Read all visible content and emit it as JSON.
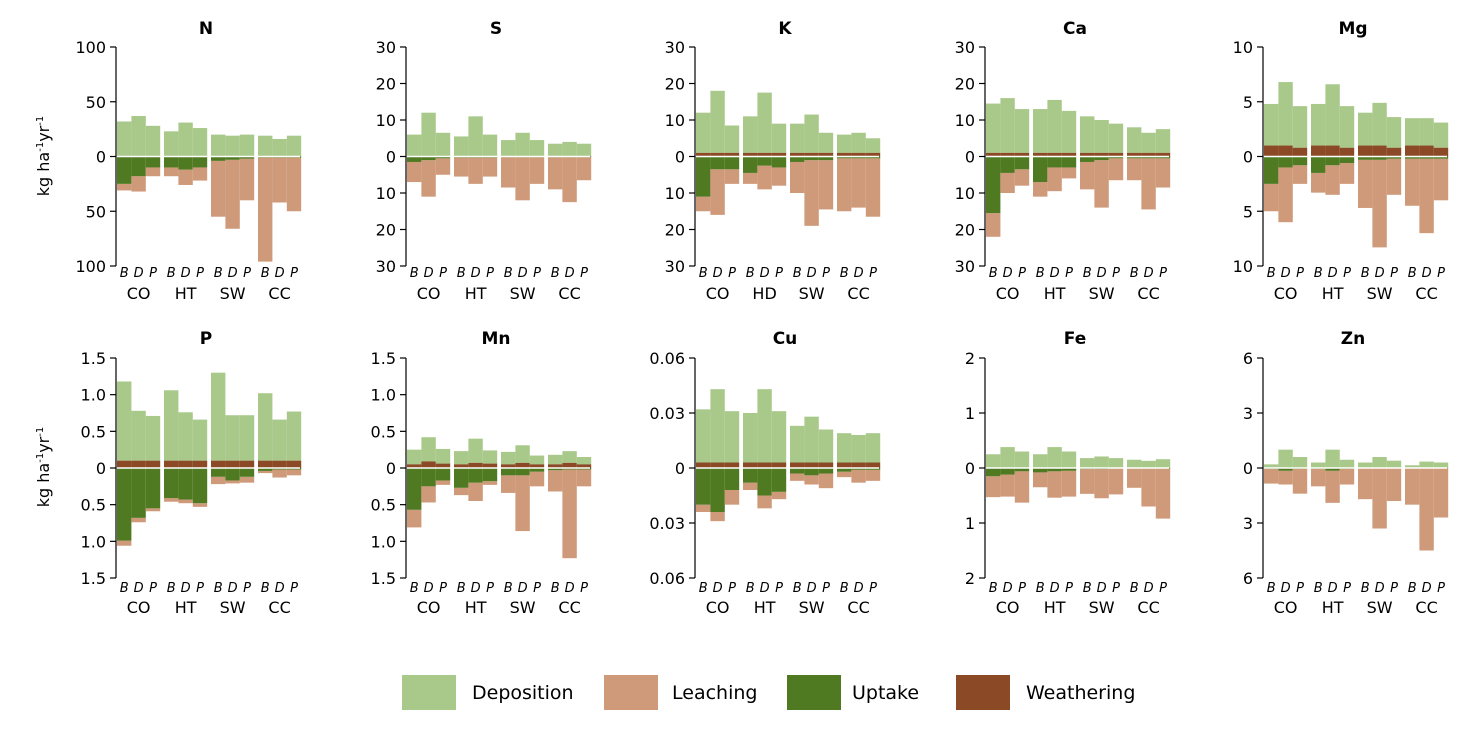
{
  "ylabel": {
    "base": "kg ha",
    "sup1": "-1",
    "mid": "yr",
    "sup2": "-1"
  },
  "colors": {
    "deposition": "#a9c98b",
    "leaching": "#cf9a7a",
    "uptake": "#4f7a22",
    "weathering": "#8b4a25"
  },
  "legend": [
    {
      "key": "deposition",
      "label": "Deposition"
    },
    {
      "key": "leaching",
      "label": "Leaching"
    },
    {
      "key": "uptake",
      "label": "Uptake"
    },
    {
      "key": "weathering",
      "label": "Weathering"
    }
  ],
  "bar_letters": [
    "B",
    "D",
    "P"
  ],
  "chart_data": [
    {
      "type": "bar",
      "title": "N",
      "ylim": [
        -100,
        100
      ],
      "ticks": [
        "100",
        "50",
        "0",
        "50",
        "100"
      ],
      "sites": [
        "CO",
        "HT",
        "SW",
        "CC"
      ],
      "deposition": [
        32,
        37,
        28,
        23,
        31,
        26,
        20,
        19,
        20,
        19,
        16,
        19
      ],
      "weathering": [
        0,
        0,
        0,
        0,
        0,
        0,
        0,
        0,
        0,
        0,
        0,
        0
      ],
      "uptake": [
        -25,
        -18,
        -10,
        -10,
        -12,
        -10,
        -4,
        -3,
        -2,
        -1,
        -1,
        -1
      ],
      "leaching": [
        -31,
        -32,
        -18,
        -18,
        -26,
        -22,
        -55,
        -66,
        -40,
        -96,
        -42,
        -50
      ]
    },
    {
      "type": "bar",
      "title": "S",
      "ylim": [
        -30,
        30
      ],
      "ticks": [
        "30",
        "20",
        "10",
        "0",
        "10",
        "20",
        "30"
      ],
      "sites": [
        "CO",
        "HT",
        "SW",
        "CC"
      ],
      "deposition": [
        6,
        12,
        6.5,
        5.5,
        11,
        6,
        4.5,
        6.5,
        4.5,
        3.5,
        4,
        3.5
      ],
      "weathering": [
        0,
        0,
        0,
        0,
        0,
        0,
        0,
        0,
        0,
        0,
        0,
        0
      ],
      "uptake": [
        -1.5,
        -1,
        -0.5,
        -0.3,
        -0.3,
        -0.3,
        -0.2,
        -0.2,
        -0.2,
        -0.2,
        -0.2,
        -0.2
      ],
      "leaching": [
        -7,
        -11,
        -5,
        -5.5,
        -7.5,
        -5.5,
        -8.5,
        -12,
        -7.5,
        -9,
        -12.5,
        -6.5
      ]
    },
    {
      "type": "bar",
      "title": "K",
      "ylim": [
        -30,
        30
      ],
      "ticks": [
        "30",
        "20",
        "10",
        "0",
        "10",
        "20",
        "30"
      ],
      "sites": [
        "CO",
        "HD",
        "SW",
        "CC"
      ],
      "deposition": [
        11,
        17,
        7.5,
        10,
        16.5,
        8,
        8,
        10.5,
        5.5,
        5,
        5.5,
        4
      ],
      "weathering": [
        1,
        1,
        1,
        1,
        1,
        1,
        1,
        1,
        1,
        1,
        1,
        1
      ],
      "uptake": [
        -11,
        -3.5,
        -3.5,
        -4.5,
        -2.5,
        -3,
        -1.5,
        -1,
        -1,
        -0.5,
        -0.5,
        -0.5
      ],
      "leaching": [
        -15,
        -16,
        -7.5,
        -7.5,
        -9,
        -8,
        -10,
        -19,
        -14.5,
        -15,
        -14,
        -16.5
      ]
    },
    {
      "type": "bar",
      "title": "Ca",
      "ylim": [
        -30,
        30
      ],
      "ticks": [
        "30",
        "20",
        "10",
        "0",
        "10",
        "20",
        "30"
      ],
      "sites": [
        "CO",
        "HT",
        "SW",
        "CC"
      ],
      "deposition": [
        13.5,
        15,
        12,
        12,
        14.5,
        11.5,
        10,
        9,
        8,
        7,
        5.5,
        6.5
      ],
      "weathering": [
        1,
        1,
        1,
        1,
        1,
        1,
        1,
        1,
        1,
        1,
        1,
        1
      ],
      "uptake": [
        -15.5,
        -4.5,
        -3.5,
        -7,
        -3,
        -3,
        -1.5,
        -1,
        -0.5,
        -0.5,
        -0.5,
        -0.5
      ],
      "leaching": [
        -22,
        -10,
        -8,
        -11,
        -9.5,
        -6,
        -9,
        -14,
        -6.5,
        -6.5,
        -14.5,
        -8.5
      ]
    },
    {
      "type": "bar",
      "title": "Mg",
      "ylim": [
        -10,
        10
      ],
      "ticks": [
        "10",
        "5",
        "0",
        "5",
        "10"
      ],
      "sites": [
        "CO",
        "HT",
        "SW",
        "CC"
      ],
      "deposition": [
        3.8,
        5.8,
        3.8,
        3.8,
        5.6,
        3.8,
        3,
        3.9,
        2.8,
        2.5,
        2.5,
        2.3
      ],
      "weathering": [
        1,
        1,
        0.8,
        1,
        1,
        0.8,
        1,
        1,
        0.8,
        1,
        1,
        0.8
      ],
      "uptake": [
        -2.5,
        -1,
        -0.8,
        -1.5,
        -0.8,
        -0.6,
        -0.3,
        -0.3,
        -0.2,
        -0.2,
        -0.2,
        -0.2
      ],
      "leaching": [
        -5,
        -6,
        -2.5,
        -3.3,
        -3.5,
        -2.5,
        -4.7,
        -8.3,
        -3.5,
        -4.5,
        -7,
        -4
      ]
    },
    {
      "type": "bar",
      "title": "P",
      "ylim": [
        -1.5,
        1.5
      ],
      "ticks": [
        "1.5",
        "1.0",
        "0.5",
        "0",
        "0.5",
        "1.0",
        "1.5"
      ],
      "sites": [
        "CO",
        "HT",
        "SW",
        "CC"
      ],
      "deposition": [
        1.08,
        0.68,
        0.61,
        0.96,
        0.66,
        0.56,
        1.2,
        0.62,
        0.62,
        0.92,
        0.56,
        0.67
      ],
      "weathering": [
        0.1,
        0.1,
        0.1,
        0.1,
        0.1,
        0.1,
        0.1,
        0.1,
        0.1,
        0.1,
        0.1,
        0.1
      ],
      "uptake": [
        -0.99,
        -0.68,
        -0.55,
        -0.41,
        -0.43,
        -0.48,
        -0.12,
        -0.17,
        -0.12,
        -0.04,
        -0.02,
        -0.02
      ],
      "leaching": [
        -1.06,
        -0.74,
        -0.59,
        -0.46,
        -0.48,
        -0.53,
        -0.22,
        -0.21,
        -0.2,
        -0.07,
        -0.13,
        -0.1
      ]
    },
    {
      "type": "bar",
      "title": "Mn",
      "ylim": [
        -1.5,
        1.5
      ],
      "ticks": [
        "1.5",
        "1.0",
        "0.5",
        "0",
        "0.5",
        "1.0",
        "1.5"
      ],
      "sites": [
        "CO",
        "HT",
        "SW",
        "CC"
      ],
      "deposition": [
        0.2,
        0.33,
        0.2,
        0.18,
        0.33,
        0.18,
        0.17,
        0.24,
        0.12,
        0.13,
        0.16,
        0.1
      ],
      "weathering": [
        0.05,
        0.09,
        0.06,
        0.05,
        0.07,
        0.06,
        0.05,
        0.07,
        0.05,
        0.05,
        0.07,
        0.05
      ],
      "uptake": [
        -0.57,
        -0.25,
        -0.17,
        -0.27,
        -0.2,
        -0.18,
        -0.1,
        -0.1,
        -0.05,
        -0.03,
        -0.02,
        -0.02
      ],
      "leaching": [
        -0.81,
        -0.47,
        -0.23,
        -0.37,
        -0.45,
        -0.23,
        -0.34,
        -0.86,
        -0.25,
        -0.32,
        -1.23,
        -0.25
      ]
    },
    {
      "type": "bar",
      "title": "Cu",
      "ylim": [
        -0.06,
        0.06
      ],
      "ticks": [
        "0.06",
        "0.03",
        "0",
        "0.03",
        "0.06"
      ],
      "sites": [
        "CO",
        "HT",
        "SW",
        "CC"
      ],
      "deposition": [
        0.029,
        0.04,
        0.028,
        0.027,
        0.04,
        0.028,
        0.02,
        0.025,
        0.018,
        0.016,
        0.015,
        0.016
      ],
      "weathering": [
        0.003,
        0.003,
        0.003,
        0.003,
        0.003,
        0.003,
        0.003,
        0.003,
        0.003,
        0.003,
        0.003,
        0.003
      ],
      "uptake": [
        -0.02,
        -0.024,
        -0.012,
        -0.008,
        -0.015,
        -0.013,
        -0.003,
        -0.004,
        -0.003,
        -0.002,
        -0.001,
        -0.001
      ],
      "leaching": [
        -0.024,
        -0.029,
        -0.02,
        -0.012,
        -0.022,
        -0.017,
        -0.007,
        -0.009,
        -0.011,
        -0.005,
        -0.008,
        -0.007
      ]
    },
    {
      "type": "bar",
      "title": "Fe",
      "ylim": [
        -2,
        2
      ],
      "ticks": [
        "2",
        "1",
        "0",
        "1",
        "2"
      ],
      "sites": [
        "CO",
        "HT",
        "SW",
        "CC"
      ],
      "deposition": [
        0.25,
        0.38,
        0.3,
        0.25,
        0.38,
        0.3,
        0.18,
        0.21,
        0.18,
        0.15,
        0.13,
        0.16
      ],
      "weathering": [
        0,
        0,
        0,
        0,
        0,
        0,
        0,
        0,
        0,
        0,
        0,
        0
      ],
      "uptake": [
        -0.15,
        -0.12,
        -0.06,
        -0.08,
        -0.06,
        -0.05,
        -0.02,
        -0.02,
        -0.01,
        -0.01,
        -0.01,
        -0.01
      ],
      "leaching": [
        -0.53,
        -0.52,
        -0.63,
        -0.35,
        -0.54,
        -0.52,
        -0.47,
        -0.55,
        -0.48,
        -0.36,
        -0.7,
        -0.92
      ]
    },
    {
      "type": "bar",
      "title": "Zn",
      "ylim": [
        -6,
        6
      ],
      "ticks": [
        "6",
        "3",
        "0",
        "3",
        "6"
      ],
      "sites": [
        "CO",
        "HT",
        "SW",
        "CC"
      ],
      "deposition": [
        0.2,
        1,
        0.6,
        0.3,
        1,
        0.45,
        0.3,
        0.6,
        0.4,
        0.15,
        0.35,
        0.3
      ],
      "weathering": [
        0,
        0,
        0,
        0,
        0,
        0,
        0,
        0,
        0,
        0,
        0,
        0
      ],
      "uptake": [
        -0.05,
        -0.15,
        -0.05,
        -0.05,
        -0.15,
        -0.05,
        -0.02,
        -0.02,
        -0.02,
        -0.01,
        -0.01,
        -0.01
      ],
      "leaching": [
        -0.85,
        -0.9,
        -1.4,
        -1,
        -1.9,
        -0.9,
        -1.7,
        -3.3,
        -1.8,
        -2,
        -4.5,
        -2.7
      ]
    }
  ]
}
